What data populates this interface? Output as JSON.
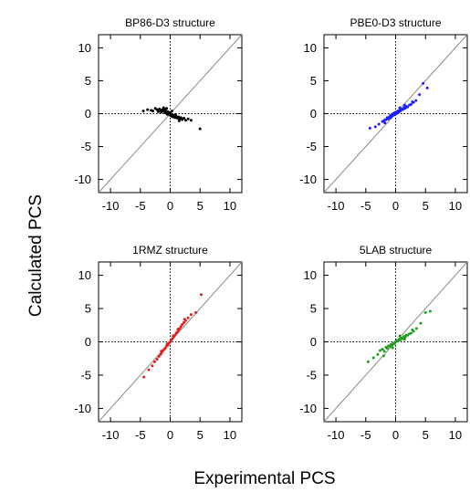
{
  "figure": {
    "ylabel": "Calculated PCS",
    "xlabel": "Experimental PCS",
    "background": "#ffffff"
  },
  "chart_data": [
    {
      "type": "scatter",
      "title": "BP86-D3 structure",
      "xlim": [
        -12,
        12
      ],
      "ylim": [
        -12,
        12
      ],
      "xticks": [
        -10,
        -5,
        0,
        5,
        10
      ],
      "yticks": [
        10,
        5,
        0,
        -5,
        -10
      ],
      "reference": "y = x diagonal, dotted zero lines",
      "grid": false,
      "color": "#000000",
      "points": [
        [
          -4.5,
          0.4
        ],
        [
          -3.8,
          0.6
        ],
        [
          -3.2,
          0.5
        ],
        [
          -2.9,
          0.4
        ],
        [
          -2.5,
          0.8
        ],
        [
          -2.2,
          0.6
        ],
        [
          -2.0,
          0.3
        ],
        [
          -1.8,
          0.7
        ],
        [
          -1.6,
          0.5
        ],
        [
          -1.5,
          0.2
        ],
        [
          -1.3,
          0.6
        ],
        [
          -1.2,
          0.4
        ],
        [
          -1.0,
          0.3
        ],
        [
          -0.9,
          0.6
        ],
        [
          -0.8,
          0.1
        ],
        [
          -0.7,
          0.4
        ],
        [
          -0.6,
          0.2
        ],
        [
          -0.5,
          -0.1
        ],
        [
          -0.4,
          0.3
        ],
        [
          -0.3,
          0.0
        ],
        [
          -0.2,
          0.2
        ],
        [
          -0.1,
          -0.2
        ],
        [
          0.0,
          0.1
        ],
        [
          0.1,
          -0.3
        ],
        [
          0.2,
          -0.1
        ],
        [
          0.3,
          -0.4
        ],
        [
          0.4,
          -0.2
        ],
        [
          0.5,
          -0.5
        ],
        [
          0.6,
          -0.3
        ],
        [
          0.8,
          -0.6
        ],
        [
          1.0,
          -0.4
        ],
        [
          1.2,
          -0.7
        ],
        [
          1.4,
          -0.5
        ],
        [
          1.6,
          -0.8
        ],
        [
          1.8,
          -0.6
        ],
        [
          2.0,
          -0.9
        ],
        [
          2.3,
          -0.7
        ],
        [
          2.6,
          -1.0
        ],
        [
          3.0,
          -0.8
        ],
        [
          3.5,
          -1.0
        ],
        [
          5.0,
          -2.3
        ],
        [
          -0.6,
          0.8
        ],
        [
          0.3,
          0.4
        ],
        [
          0.9,
          -0.1
        ],
        [
          -1.1,
          0.9
        ],
        [
          1.5,
          -1.1
        ]
      ]
    },
    {
      "type": "scatter",
      "title": "PBE0-D3 structure",
      "xlim": [
        -12,
        12
      ],
      "ylim": [
        -12,
        12
      ],
      "xticks": [
        -10,
        -5,
        0,
        5,
        10
      ],
      "yticks": [
        10,
        5,
        0,
        -5,
        -10
      ],
      "reference": "y = x diagonal, dotted zero lines",
      "grid": false,
      "color": "#1c1cff",
      "points": [
        [
          -4.3,
          -2.2
        ],
        [
          -3.4,
          -2.0
        ],
        [
          -2.8,
          -1.6
        ],
        [
          -2.2,
          -1.2
        ],
        [
          -1.9,
          -1.0
        ],
        [
          -1.6,
          -0.9
        ],
        [
          -1.4,
          -0.6
        ],
        [
          -1.2,
          -0.8
        ],
        [
          -1.0,
          -0.5
        ],
        [
          -0.9,
          -0.3
        ],
        [
          -0.7,
          -0.4
        ],
        [
          -0.6,
          -0.1
        ],
        [
          -0.5,
          -0.3
        ],
        [
          -0.4,
          0.0
        ],
        [
          -0.3,
          -0.2
        ],
        [
          -0.2,
          0.1
        ],
        [
          -0.1,
          -0.1
        ],
        [
          0.0,
          0.2
        ],
        [
          0.1,
          0.0
        ],
        [
          0.2,
          0.3
        ],
        [
          0.3,
          0.1
        ],
        [
          0.4,
          0.4
        ],
        [
          0.5,
          0.2
        ],
        [
          0.6,
          0.5
        ],
        [
          0.8,
          0.4
        ],
        [
          1.0,
          0.7
        ],
        [
          1.2,
          0.6
        ],
        [
          1.4,
          0.9
        ],
        [
          1.6,
          0.8
        ],
        [
          1.8,
          1.1
        ],
        [
          2.0,
          1.0
        ],
        [
          2.3,
          1.3
        ],
        [
          2.6,
          1.4
        ],
        [
          3.0,
          1.7
        ],
        [
          3.4,
          2.0
        ],
        [
          4.0,
          2.9
        ],
        [
          4.6,
          4.6
        ],
        [
          5.3,
          3.9
        ],
        [
          -0.8,
          -0.6
        ],
        [
          0.7,
          0.9
        ],
        [
          1.5,
          1.3
        ],
        [
          -1.8,
          -1.4
        ],
        [
          2.8,
          1.8
        ]
      ]
    },
    {
      "type": "scatter",
      "title": "1RMZ structure",
      "xlim": [
        -12,
        12
      ],
      "ylim": [
        -12,
        12
      ],
      "xticks": [
        -10,
        -5,
        0,
        5,
        10
      ],
      "yticks": [
        10,
        5,
        0,
        -5,
        -10
      ],
      "reference": "y = x diagonal, dotted zero lines",
      "grid": false,
      "color": "#e01c1c",
      "points": [
        [
          -4.4,
          -5.3
        ],
        [
          -3.6,
          -4.2
        ],
        [
          -3.0,
          -3.6
        ],
        [
          -2.6,
          -3.0
        ],
        [
          -2.2,
          -2.6
        ],
        [
          -1.9,
          -2.2
        ],
        [
          -1.6,
          -1.9
        ],
        [
          -1.4,
          -1.6
        ],
        [
          -1.2,
          -1.3
        ],
        [
          -1.0,
          -1.1
        ],
        [
          -0.8,
          -0.9
        ],
        [
          -0.6,
          -0.6
        ],
        [
          -0.4,
          -0.5
        ],
        [
          -0.2,
          -0.2
        ],
        [
          0.0,
          0.0
        ],
        [
          0.2,
          0.3
        ],
        [
          0.4,
          0.5
        ],
        [
          0.6,
          0.8
        ],
        [
          0.8,
          1.0
        ],
        [
          1.0,
          1.3
        ],
        [
          1.2,
          1.5
        ],
        [
          1.4,
          1.8
        ],
        [
          1.6,
          2.0
        ],
        [
          1.8,
          2.3
        ],
        [
          2.0,
          2.6
        ],
        [
          2.3,
          2.9
        ],
        [
          2.6,
          3.2
        ],
        [
          3.0,
          3.6
        ],
        [
          3.5,
          4.1
        ],
        [
          4.3,
          4.4
        ],
        [
          5.2,
          7.1
        ],
        [
          -0.5,
          -0.3
        ],
        [
          0.5,
          0.9
        ],
        [
          1.3,
          1.9
        ],
        [
          -1.5,
          -1.4
        ],
        [
          2.4,
          3.4
        ]
      ]
    },
    {
      "type": "scatter",
      "title": "5LAB structure",
      "xlim": [
        -12,
        12
      ],
      "ylim": [
        -12,
        12
      ],
      "xticks": [
        -10,
        -5,
        0,
        5,
        10
      ],
      "yticks": [
        10,
        5,
        0,
        -5,
        -10
      ],
      "reference": "y = x diagonal, dotted zero lines",
      "grid": false,
      "color": "#1e9e1e",
      "points": [
        [
          -4.6,
          -3.0
        ],
        [
          -3.7,
          -2.4
        ],
        [
          -3.0,
          -1.9
        ],
        [
          -2.6,
          -1.3
        ],
        [
          -2.2,
          -1.1
        ],
        [
          -1.9,
          -1.4
        ],
        [
          -1.6,
          -0.8
        ],
        [
          -1.4,
          -1.0
        ],
        [
          -1.2,
          -0.6
        ],
        [
          -1.0,
          -0.7
        ],
        [
          -0.8,
          -0.4
        ],
        [
          -0.6,
          -0.5
        ],
        [
          -0.4,
          -0.2
        ],
        [
          -0.2,
          -0.3
        ],
        [
          0.0,
          0.0
        ],
        [
          0.2,
          0.2
        ],
        [
          0.4,
          0.1
        ],
        [
          0.6,
          0.4
        ],
        [
          0.8,
          0.3
        ],
        [
          1.0,
          0.6
        ],
        [
          1.2,
          0.5
        ],
        [
          1.4,
          0.8
        ],
        [
          1.6,
          0.7
        ],
        [
          1.8,
          1.0
        ],
        [
          2.0,
          1.0
        ],
        [
          2.3,
          1.2
        ],
        [
          2.6,
          1.3
        ],
        [
          3.0,
          1.6
        ],
        [
          3.5,
          2.0
        ],
        [
          4.2,
          2.8
        ],
        [
          5.0,
          4.4
        ],
        [
          5.8,
          4.6
        ],
        [
          -0.5,
          -0.9
        ],
        [
          0.7,
          0.9
        ],
        [
          1.5,
          0.4
        ],
        [
          -2.0,
          -2.1
        ],
        [
          2.8,
          1.8
        ]
      ]
    }
  ]
}
